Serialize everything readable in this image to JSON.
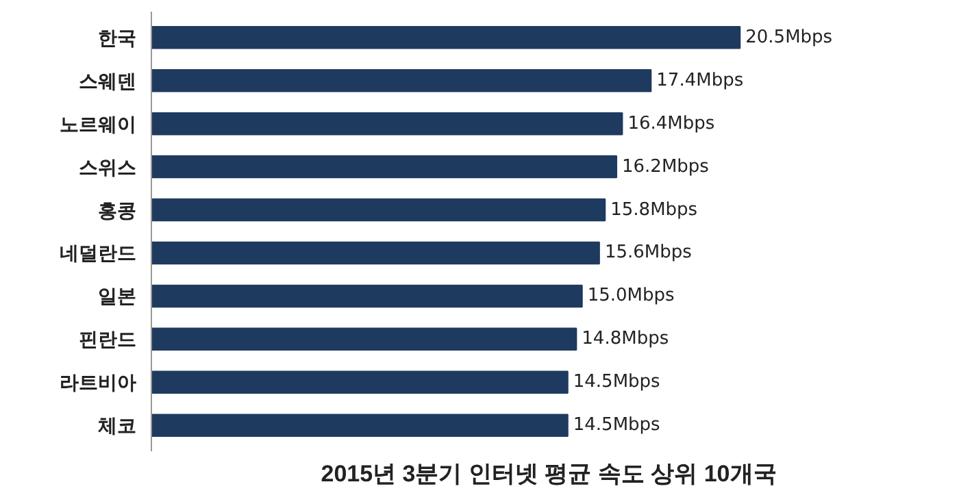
{
  "chart_data": {
    "type": "bar",
    "orientation": "horizontal",
    "title": "2015년 3분기 인터넷 평균 속도 상위 10개국",
    "categories": [
      "한국",
      "스웨덴",
      "노르웨이",
      "스위스",
      "홍콩",
      "네덜란드",
      "일본",
      "핀란드",
      "라트비아",
      "체코"
    ],
    "values": [
      20.5,
      17.4,
      16.4,
      16.2,
      15.8,
      15.6,
      15.0,
      14.8,
      14.5,
      14.5
    ],
    "value_labels": [
      "20.5Mbps",
      "17.4Mbps",
      "16.4Mbps",
      "16.2Mbps",
      "15.8Mbps",
      "15.6Mbps",
      "15.0Mbps",
      "14.8Mbps",
      "14.5Mbps",
      "14.5Mbps"
    ],
    "color": "#1f3a5f",
    "grid": false,
    "tick_labels": "y"
  }
}
